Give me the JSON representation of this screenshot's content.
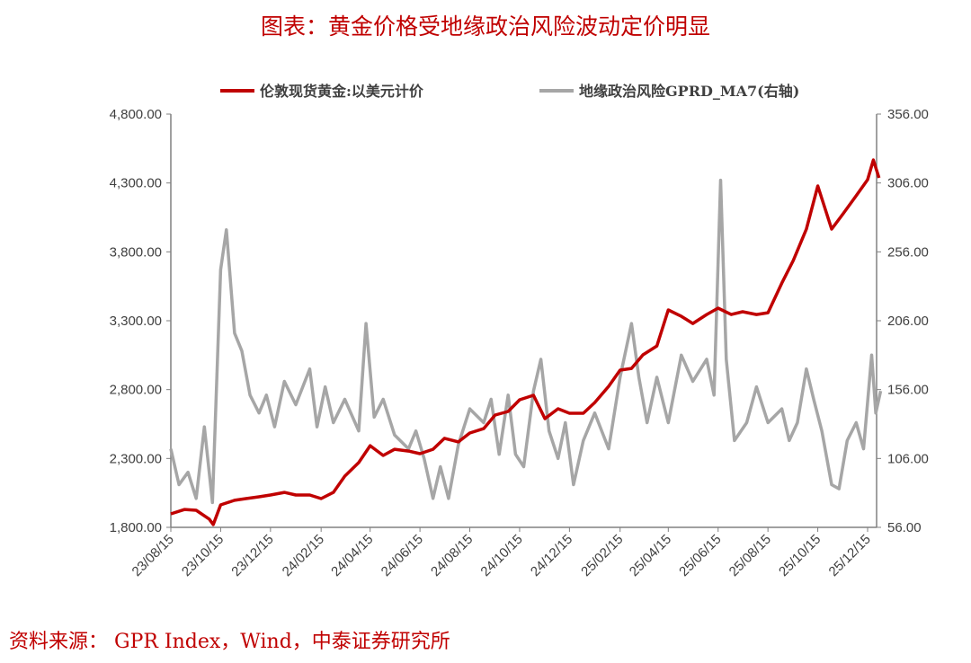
{
  "title": "图表：黄金价格受地缘政治风险波动定价明显",
  "source": "资料来源： GPR Index，Wind，中泰证券研究所",
  "chart_data": {
    "type": "line",
    "title": "图表：黄金价格受地缘政治风险波动定价明显",
    "legend_position": "top",
    "grid": false,
    "x_ticks": [
      "23/08/15",
      "23/10/15",
      "23/12/15",
      "24/02/15",
      "24/04/15",
      "24/06/15",
      "24/08/15",
      "24/10/15",
      "24/12/15",
      "25/02/15",
      "25/04/15",
      "25/06/15",
      "25/08/15",
      "25/10/15",
      "25/12/15"
    ],
    "y_left": {
      "ylim": [
        1800,
        4800
      ],
      "ticks": [
        "1,800.00",
        "2,300.00",
        "2,800.00",
        "3,300.00",
        "3,800.00",
        "4,300.00",
        "4,800.00"
      ]
    },
    "y_right": {
      "ylim": [
        56,
        356
      ],
      "ticks": [
        "56.00",
        "106.00",
        "156.00",
        "206.00",
        "256.00",
        "306.00",
        "356.00"
      ]
    },
    "series": [
      {
        "name": "伦敦现货黄金:以美元计价",
        "axis": "left",
        "color": "#c00000",
        "points": [
          [
            "2023-08-15",
            1898
          ],
          [
            "2023-09-01",
            1930
          ],
          [
            "2023-09-15",
            1924
          ],
          [
            "2023-10-01",
            1860
          ],
          [
            "2023-10-06",
            1820
          ],
          [
            "2023-10-15",
            1963
          ],
          [
            "2023-11-01",
            1996
          ],
          [
            "2023-11-15",
            2009
          ],
          [
            "2023-12-01",
            2022
          ],
          [
            "2023-12-15",
            2035
          ],
          [
            "2024-01-01",
            2054
          ],
          [
            "2024-01-15",
            2035
          ],
          [
            "2024-02-01",
            2035
          ],
          [
            "2024-02-15",
            2009
          ],
          [
            "2024-03-01",
            2054
          ],
          [
            "2024-03-15",
            2172
          ],
          [
            "2024-04-01",
            2270
          ],
          [
            "2024-04-15",
            2393
          ],
          [
            "2024-05-01",
            2322
          ],
          [
            "2024-05-15",
            2367
          ],
          [
            "2024-06-01",
            2354
          ],
          [
            "2024-06-15",
            2335
          ],
          [
            "2024-07-01",
            2367
          ],
          [
            "2024-07-15",
            2446
          ],
          [
            "2024-08-01",
            2420
          ],
          [
            "2024-08-15",
            2485
          ],
          [
            "2024-09-01",
            2517
          ],
          [
            "2024-09-15",
            2615
          ],
          [
            "2024-10-01",
            2641
          ],
          [
            "2024-10-15",
            2726
          ],
          [
            "2024-11-01",
            2759
          ],
          [
            "2024-11-15",
            2589
          ],
          [
            "2024-12-01",
            2661
          ],
          [
            "2024-12-15",
            2628
          ],
          [
            "2025-01-01",
            2628
          ],
          [
            "2025-01-15",
            2706
          ],
          [
            "2025-02-01",
            2824
          ],
          [
            "2025-02-15",
            2941
          ],
          [
            "2025-03-01",
            2954
          ],
          [
            "2025-03-15",
            3052
          ],
          [
            "2025-04-01",
            3117
          ],
          [
            "2025-04-15",
            3378
          ],
          [
            "2025-05-01",
            3332
          ],
          [
            "2025-05-15",
            3280
          ],
          [
            "2025-06-01",
            3345
          ],
          [
            "2025-06-15",
            3391
          ],
          [
            "2025-07-01",
            3345
          ],
          [
            "2025-07-15",
            3365
          ],
          [
            "2025-08-01",
            3345
          ],
          [
            "2025-08-15",
            3358
          ],
          [
            "2025-09-01",
            3573
          ],
          [
            "2025-09-15",
            3737
          ],
          [
            "2025-10-01",
            3965
          ],
          [
            "2025-10-15",
            4278
          ],
          [
            "2025-11-01",
            3965
          ],
          [
            "2025-11-15",
            4076
          ],
          [
            "2025-12-01",
            4207
          ],
          [
            "2025-12-15",
            4324
          ],
          [
            "2025-12-22",
            4467
          ],
          [
            "2025-12-29",
            4337
          ]
        ]
      },
      {
        "name": "地缘政治风险GPRD_MA7(右轴)",
        "axis": "right",
        "color": "#a6a6a6",
        "points": [
          [
            "2023-08-15",
            113
          ],
          [
            "2023-08-25",
            87
          ],
          [
            "2023-09-05",
            96
          ],
          [
            "2023-09-15",
            77
          ],
          [
            "2023-09-25",
            129
          ],
          [
            "2023-10-05",
            74
          ],
          [
            "2023-10-15",
            243
          ],
          [
            "2023-10-22",
            272
          ],
          [
            "2023-11-01",
            197
          ],
          [
            "2023-11-10",
            184
          ],
          [
            "2023-11-20",
            152
          ],
          [
            "2023-12-01",
            139
          ],
          [
            "2023-12-10",
            152
          ],
          [
            "2023-12-20",
            129
          ],
          [
            "2024-01-01",
            162
          ],
          [
            "2024-01-15",
            145
          ],
          [
            "2024-02-01",
            171
          ],
          [
            "2024-02-10",
            129
          ],
          [
            "2024-02-20",
            158
          ],
          [
            "2024-03-01",
            132
          ],
          [
            "2024-03-15",
            149
          ],
          [
            "2024-04-01",
            126
          ],
          [
            "2024-04-10",
            204
          ],
          [
            "2024-04-20",
            136
          ],
          [
            "2024-05-01",
            149
          ],
          [
            "2024-05-15",
            123
          ],
          [
            "2024-06-01",
            113
          ],
          [
            "2024-06-10",
            126
          ],
          [
            "2024-06-20",
            106
          ],
          [
            "2024-07-01",
            77
          ],
          [
            "2024-07-10",
            100
          ],
          [
            "2024-07-20",
            77
          ],
          [
            "2024-08-01",
            116
          ],
          [
            "2024-08-15",
            142
          ],
          [
            "2024-09-01",
            132
          ],
          [
            "2024-09-10",
            149
          ],
          [
            "2024-09-20",
            109
          ],
          [
            "2024-10-01",
            152
          ],
          [
            "2024-10-10",
            109
          ],
          [
            "2024-10-20",
            100
          ],
          [
            "2024-11-01",
            155
          ],
          [
            "2024-11-10",
            178
          ],
          [
            "2024-11-20",
            126
          ],
          [
            "2024-12-01",
            106
          ],
          [
            "2024-12-10",
            132
          ],
          [
            "2024-12-20",
            87
          ],
          [
            "2025-01-01",
            119
          ],
          [
            "2025-01-15",
            139
          ],
          [
            "2025-02-01",
            113
          ],
          [
            "2025-02-15",
            165
          ],
          [
            "2025-03-01",
            204
          ],
          [
            "2025-03-10",
            165
          ],
          [
            "2025-03-20",
            132
          ],
          [
            "2025-04-01",
            165
          ],
          [
            "2025-04-15",
            132
          ],
          [
            "2025-05-01",
            181
          ],
          [
            "2025-05-15",
            162
          ],
          [
            "2025-06-01",
            178
          ],
          [
            "2025-06-10",
            152
          ],
          [
            "2025-06-18",
            308
          ],
          [
            "2025-06-25",
            178
          ],
          [
            "2025-07-05",
            119
          ],
          [
            "2025-07-20",
            132
          ],
          [
            "2025-08-01",
            158
          ],
          [
            "2025-08-15",
            132
          ],
          [
            "2025-09-01",
            142
          ],
          [
            "2025-09-10",
            119
          ],
          [
            "2025-09-20",
            132
          ],
          [
            "2025-10-01",
            171
          ],
          [
            "2025-10-10",
            149
          ],
          [
            "2025-10-20",
            126
          ],
          [
            "2025-11-01",
            87
          ],
          [
            "2025-11-10",
            84
          ],
          [
            "2025-11-20",
            119
          ],
          [
            "2025-12-01",
            132
          ],
          [
            "2025-12-10",
            113
          ],
          [
            "2025-12-20",
            181
          ],
          [
            "2025-12-25",
            139
          ],
          [
            "2025-12-31",
            155
          ]
        ]
      }
    ]
  }
}
